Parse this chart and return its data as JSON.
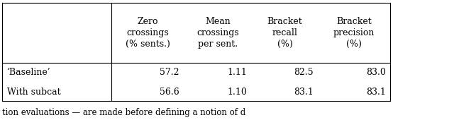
{
  "col_headers": [
    "Zero\ncrossings\n(% sents.)",
    "Mean\ncrossings\nper sent.",
    "Bracket\nrecall\n(%)",
    "Bracket\nprecision\n(%)"
  ],
  "row_labels": [
    "‘Baseline’",
    "With subcat"
  ],
  "table_data": [
    [
      "57.2",
      "1.11",
      "82.5",
      "83.0"
    ],
    [
      "56.6",
      "1.10",
      "83.1",
      "83.1"
    ]
  ],
  "caption": "tion evaluations — are made before defining a notion of d",
  "bg_color": "#ffffff",
  "font_size": 9.0
}
